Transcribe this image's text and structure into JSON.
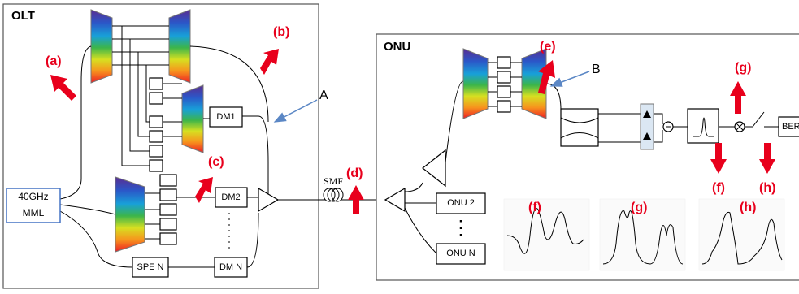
{
  "olt": {
    "label": "OLT",
    "annotations": [
      "(a)",
      "(b)",
      "(c)"
    ],
    "pointer": "A",
    "modules": [
      "DM1",
      "DM2",
      "DM N",
      "SPE N"
    ],
    "source": [
      "40GHz",
      "MML"
    ]
  },
  "link": {
    "fiber": "SMF",
    "annotation": "(d)"
  },
  "onu": {
    "label": "ONU",
    "annotations": [
      "(e)",
      "(g)",
      "(f)",
      "(h)"
    ],
    "pointer": "B",
    "receiver": "BER",
    "units": [
      "ONU 2",
      "ONU N"
    ],
    "waveforms": [
      "(f)",
      "(g)",
      "(h)"
    ]
  }
}
